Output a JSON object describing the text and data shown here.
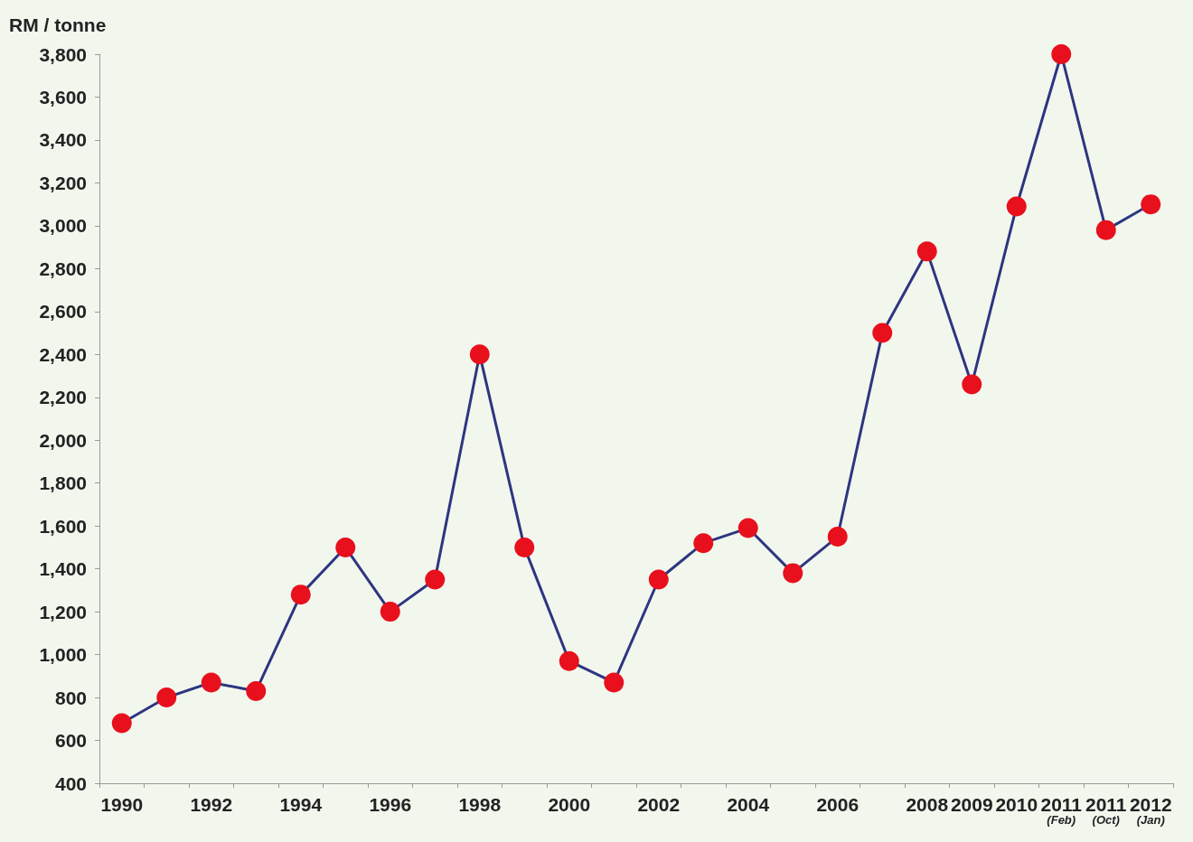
{
  "chart_data": {
    "type": "line",
    "ylabel": "RM / tonne",
    "categories": [
      "1990",
      null,
      "1992",
      null,
      "1994",
      null,
      "1996",
      null,
      "1998",
      null,
      "2000",
      null,
      "2002",
      null,
      "2004",
      null,
      "2006",
      null,
      "2008",
      "2009",
      "2010",
      "2011\n(Feb)",
      "2011\n(Oct)",
      "2012\n(Jan)"
    ],
    "series": [
      {
        "color": "#2e3580",
        "values": [
          680,
          800,
          870,
          830,
          1280,
          1500,
          1200,
          1350,
          2400,
          1500,
          970,
          870,
          1350,
          1520,
          1590,
          1380,
          1550,
          2500,
          2880,
          2260,
          3090,
          3800,
          2980,
          3100
        ]
      }
    ],
    "marker": "circle",
    "line_style": "solid",
    "ylim": [
      400,
      3800
    ],
    "yticks": [
      400,
      600,
      800,
      {
        "value": 1000,
        "label": "1,000"
      },
      {
        "value": 1200,
        "label": "1,200"
      },
      {
        "value": 1400,
        "label": "1,400"
      },
      {
        "value": 1600,
        "label": "1,600"
      },
      {
        "value": 1800,
        "label": "1,800"
      },
      {
        "value": 2000,
        "label": "2,000"
      },
      {
        "value": 2200,
        "label": "2,200"
      },
      {
        "value": 2400,
        "label": "2,400"
      },
      {
        "value": 2600,
        "label": "2,600"
      },
      {
        "value": 2800,
        "label": "2,800"
      },
      {
        "value": 3000,
        "label": "3,000"
      },
      {
        "value": 3200,
        "label": "3,200"
      },
      {
        "value": 3400,
        "label": "3,400"
      },
      {
        "value": 3600,
        "label": "3,600"
      },
      {
        "value": 3800,
        "label": "3,800"
      }
    ]
  }
}
